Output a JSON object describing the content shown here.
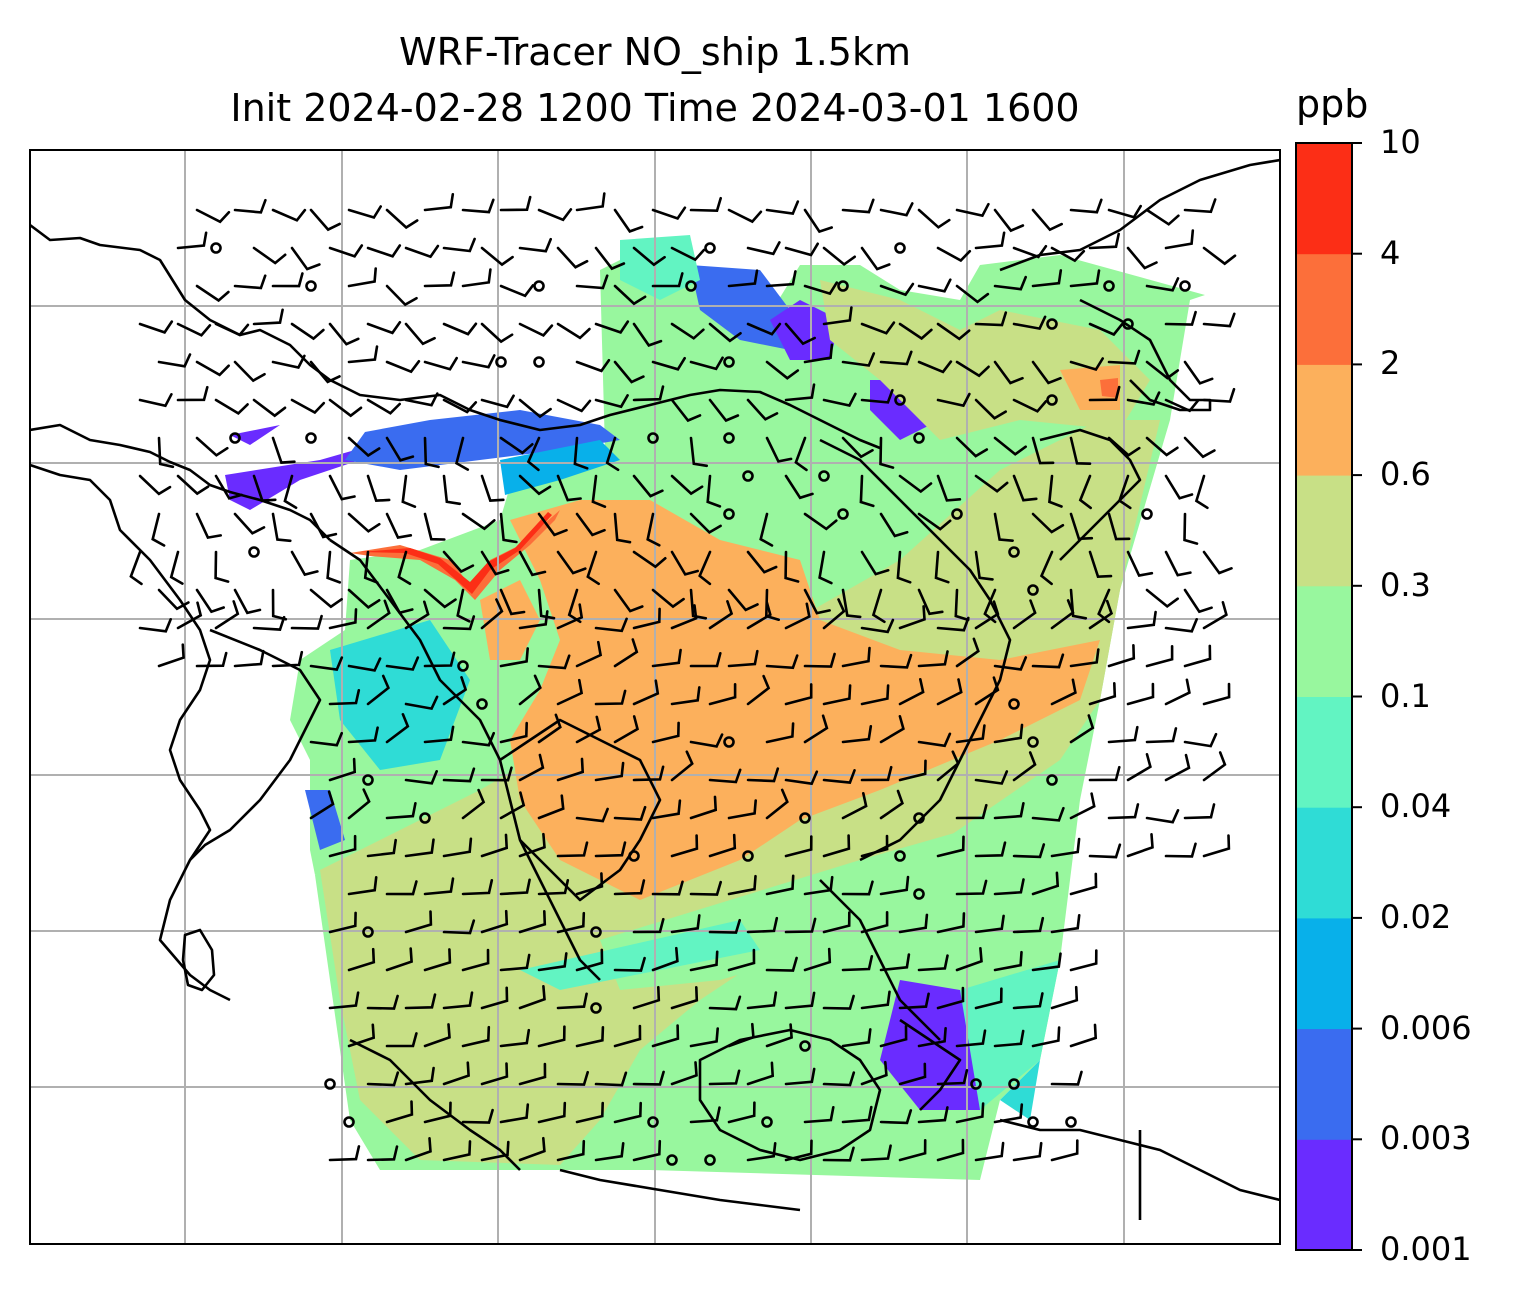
{
  "title": {
    "line1": "WRF-Tracer NO_ship 1.5km",
    "line2": "Init 2024-02-28 1200 Time 2024-03-01 1600"
  },
  "colorbar": {
    "unit": "ppb",
    "levels": [
      "0.001",
      "0.003",
      "0.006",
      "0.02",
      "0.04",
      "0.1",
      "0.3",
      "0.6",
      "2",
      "4",
      "10"
    ],
    "colors": [
      "#6a2cff",
      "#3a6cf0",
      "#08b0ea",
      "#2fdcd6",
      "#62f4c2",
      "#98f79e",
      "#c8e086",
      "#fcb05c",
      "#fc6f3a",
      "#fc2e16"
    ]
  },
  "map": {
    "type": "filled-contour with wind barbs",
    "grid": true,
    "ocean_color": "#ffffff"
  }
}
